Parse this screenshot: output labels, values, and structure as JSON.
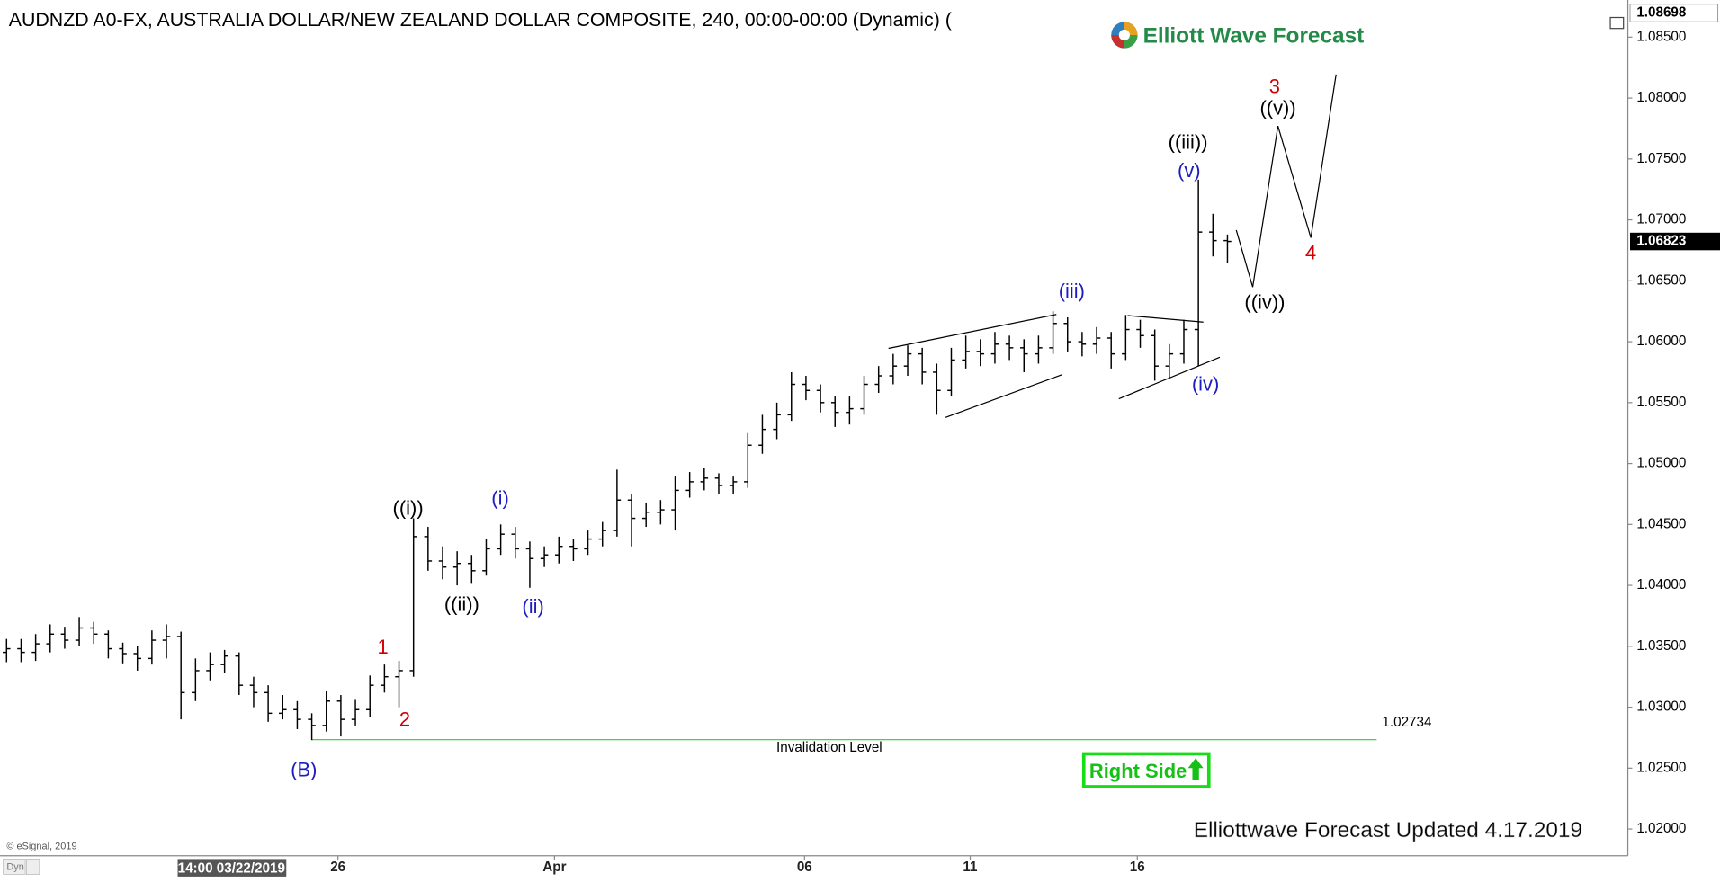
{
  "chart_data": {
    "type": "ohlc",
    "title": "AUDNZD A0-FX, AUSTRALIA DOLLAR/NEW ZEALAND DOLLAR COMPOSITE, 240, 00:00-00:00 (Dynamic) (",
    "logo_text": "Elliott Wave Forecast",
    "footer_text": "Elliottwave Forecast Updated 4.17.2019",
    "copyright": "© eSignal, 2019",
    "mode_label": "Dyn",
    "crosshair_label": "14:00 03/22/2019",
    "badge_text": "Right Side",
    "invalidation_level": 1.02734,
    "invalidation_text": "Invalidation Level",
    "invalidation_color": "#33dd33",
    "last_price": 1.06823,
    "high_marker": 1.08698,
    "bar_color": "#000000",
    "x": [
      0,
      1,
      2,
      3,
      4,
      5,
      6,
      7,
      8,
      9,
      10,
      11,
      12,
      13,
      14,
      15,
      16,
      17,
      18,
      19,
      20,
      21,
      22,
      23,
      24,
      25,
      26,
      27,
      28,
      29,
      30,
      31,
      32,
      33,
      34,
      35,
      36,
      37,
      38,
      39,
      40,
      41,
      42,
      43,
      44,
      45,
      46,
      47,
      48,
      49,
      50,
      51,
      52,
      53,
      54,
      55,
      56,
      57,
      58,
      59,
      60,
      61,
      62,
      63,
      64,
      65,
      66,
      67,
      68,
      69,
      70,
      71,
      72,
      73,
      74,
      75,
      76,
      77,
      78,
      79,
      80,
      81,
      82,
      83,
      84
    ],
    "open": [
      1.0345,
      1.0348,
      1.0345,
      1.0352,
      1.036,
      1.0355,
      1.0365,
      1.036,
      1.0348,
      1.0344,
      1.034,
      1.0355,
      1.0358,
      1.0312,
      1.033,
      1.0335,
      1.0342,
      1.0318,
      1.0312,
      1.0295,
      1.0298,
      1.029,
      1.0285,
      1.0305,
      1.029,
      1.0298,
      1.0318,
      1.0325,
      1.033,
      1.044,
      1.042,
      1.0415,
      1.0418,
      1.0412,
      1.043,
      1.0442,
      1.043,
      1.0422,
      1.0425,
      1.0432,
      1.043,
      1.0438,
      1.0445,
      1.047,
      1.0455,
      1.046,
      1.0462,
      1.0478,
      1.0485,
      1.0488,
      1.0482,
      1.0485,
      1.0515,
      1.0528,
      1.054,
      1.0565,
      1.056,
      1.055,
      1.0542,
      1.0545,
      1.0565,
      1.0572,
      1.058,
      1.059,
      1.0575,
      1.056,
      1.0585,
      1.0592,
      1.059,
      1.0598,
      1.0595,
      1.059,
      1.0595,
      1.0615,
      1.06,
      1.0598,
      1.0603,
      1.059,
      1.061,
      1.0605,
      1.058,
      1.059,
      1.061,
      1.069,
      1.0683
    ],
    "high": [
      1.0356,
      1.0356,
      1.036,
      1.0368,
      1.0366,
      1.0374,
      1.037,
      1.0363,
      1.0353,
      1.035,
      1.0363,
      1.0368,
      1.0362,
      1.034,
      1.0345,
      1.0347,
      1.0345,
      1.0325,
      1.0318,
      1.031,
      1.0305,
      1.0295,
      1.0313,
      1.031,
      1.0306,
      1.0326,
      1.0335,
      1.0338,
      1.0455,
      1.0448,
      1.0432,
      1.0428,
      1.0425,
      1.0438,
      1.045,
      1.0448,
      1.0436,
      1.0432,
      1.044,
      1.0438,
      1.0445,
      1.0452,
      1.0495,
      1.0475,
      1.0468,
      1.047,
      1.049,
      1.0493,
      1.0496,
      1.0492,
      1.049,
      1.0525,
      1.054,
      1.055,
      1.0575,
      1.0572,
      1.0565,
      1.0555,
      1.0555,
      1.0572,
      1.058,
      1.059,
      1.0597,
      1.0595,
      1.0582,
      1.0595,
      1.0605,
      1.0602,
      1.0608,
      1.0605,
      1.0602,
      1.0605,
      1.0625,
      1.062,
      1.0608,
      1.0612,
      1.0608,
      1.0622,
      1.0618,
      1.061,
      1.0598,
      1.0618,
      1.0733,
      1.0705,
      1.0688
    ],
    "low": [
      1.0337,
      1.0337,
      1.0338,
      1.0345,
      1.0348,
      1.035,
      1.0352,
      1.034,
      1.0336,
      1.033,
      1.0335,
      1.034,
      1.029,
      1.0305,
      1.0322,
      1.0328,
      1.031,
      1.03,
      1.0288,
      1.029,
      1.0282,
      1.0273,
      1.028,
      1.0276,
      1.0285,
      1.0292,
      1.0312,
      1.03,
      1.0325,
      1.0412,
      1.0405,
      1.04,
      1.0402,
      1.0408,
      1.0425,
      1.0422,
      1.0398,
      1.0415,
      1.0418,
      1.042,
      1.0425,
      1.0432,
      1.044,
      1.0432,
      1.0448,
      1.045,
      1.0445,
      1.0472,
      1.0478,
      1.0475,
      1.0475,
      1.048,
      1.0508,
      1.052,
      1.0535,
      1.0552,
      1.0542,
      1.053,
      1.0532,
      1.054,
      1.0558,
      1.0565,
      1.0572,
      1.0565,
      1.054,
      1.0555,
      1.0578,
      1.058,
      1.0582,
      1.0585,
      1.0575,
      1.0582,
      1.059,
      1.0592,
      1.0588,
      1.059,
      1.0578,
      1.0585,
      1.0595,
      1.0568,
      1.057,
      1.0582,
      1.058,
      1.067,
      1.0665
    ],
    "close": [
      1.0348,
      1.0345,
      1.0352,
      1.036,
      1.0355,
      1.0365,
      1.036,
      1.0348,
      1.0344,
      1.034,
      1.0355,
      1.0358,
      1.0312,
      1.033,
      1.0335,
      1.0342,
      1.0318,
      1.0312,
      1.0295,
      1.0298,
      1.029,
      1.0285,
      1.0305,
      1.029,
      1.0298,
      1.0318,
      1.0325,
      1.033,
      1.044,
      1.042,
      1.0415,
      1.0418,
      1.0412,
      1.043,
      1.0442,
      1.043,
      1.0422,
      1.0425,
      1.0432,
      1.043,
      1.0438,
      1.0445,
      1.047,
      1.0455,
      1.046,
      1.0462,
      1.0478,
      1.0485,
      1.0488,
      1.0482,
      1.0485,
      1.0515,
      1.0528,
      1.054,
      1.0565,
      1.056,
      1.055,
      1.0542,
      1.0545,
      1.0565,
      1.0572,
      1.058,
      1.059,
      1.0575,
      1.056,
      1.0585,
      1.0592,
      1.059,
      1.0598,
      1.0595,
      1.059,
      1.0595,
      1.0615,
      1.06,
      1.0598,
      1.0603,
      1.059,
      1.061,
      1.0605,
      1.058,
      1.059,
      1.061,
      1.069,
      1.0683,
      1.06823
    ],
    "xlim": [
      -0.15,
      111.55
    ],
    "ylim": [
      1.0179,
      1.0876
    ],
    "yticks": [
      {
        "value": 1.02,
        "label": "1.02000"
      },
      {
        "value": 1.025,
        "label": "1.02500"
      },
      {
        "value": 1.03,
        "label": "1.03000"
      },
      {
        "value": 1.035,
        "label": "1.03500"
      },
      {
        "value": 1.04,
        "label": "1.04000"
      },
      {
        "value": 1.045,
        "label": "1.04500"
      },
      {
        "value": 1.05,
        "label": "1.05000"
      },
      {
        "value": 1.055,
        "label": "1.05500"
      },
      {
        "value": 1.06,
        "label": "1.06000"
      },
      {
        "value": 1.065,
        "label": "1.06500"
      },
      {
        "value": 1.07,
        "label": "1.07000"
      },
      {
        "value": 1.075,
        "label": "1.07500"
      },
      {
        "value": 1.08,
        "label": "1.08000"
      },
      {
        "value": 1.085,
        "label": "1.08500"
      }
    ],
    "xticks": [
      {
        "value": 22.8,
        "label": "26"
      },
      {
        "value": 37.7,
        "label": "Apr"
      },
      {
        "value": 54.9,
        "label": "06"
      },
      {
        "value": 66.3,
        "label": "11"
      },
      {
        "value": 77.8,
        "label": "16"
      }
    ],
    "wave_labels": [
      {
        "text": "3",
        "color": "#d00000"
      },
      {
        "text": "((v))",
        "color": "#000000"
      },
      {
        "text": "((iii))",
        "color": "#000000"
      },
      {
        "text": "(v)",
        "color": "#1c1cc0"
      },
      {
        "text": "(iii)",
        "color": "#1c1cc0"
      },
      {
        "text": "4",
        "color": "#d00000"
      },
      {
        "text": "((iv))",
        "color": "#000000"
      },
      {
        "text": "(iv)",
        "color": "#1c1cc0"
      },
      {
        "text": "((i))",
        "color": "#000000"
      },
      {
        "text": "(i)",
        "color": "#1c1cc0"
      },
      {
        "text": "((ii))",
        "color": "#000000"
      },
      {
        "text": "(ii)",
        "color": "#1c1cc0"
      },
      {
        "text": "1",
        "color": "#d00000"
      },
      {
        "text": "2",
        "color": "#d00000"
      },
      {
        "text": "(B)",
        "color": "#1c1cc0"
      }
    ]
  }
}
